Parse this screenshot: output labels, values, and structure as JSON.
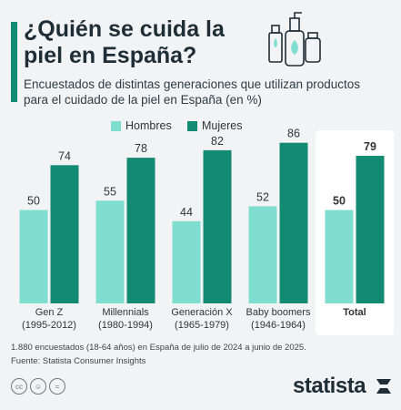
{
  "title": "¿Quién se cuida la piel en España?",
  "subtitle": "Encuestados de distintas generaciones que utilizan productos para el cuidado de la piel en España (en %)",
  "footnote_1": "1.880 encuestados (18-64 años) en España de julio de 2024 a junio de 2025.",
  "footnote_2": "Fuente: Statista Consumer Insights",
  "brand": "statista",
  "license_icons": [
    "cc-icon",
    "by-icon",
    "nd-icon"
  ],
  "colors": {
    "hombres": "#7fded0",
    "mujeres": "#138a72",
    "accent": "#138a72"
  },
  "chart_data": {
    "type": "bar",
    "categories": [
      {
        "name": "Gen Z",
        "sub": "(1995-2012)"
      },
      {
        "name": "Millennials",
        "sub": "(1980-1994)"
      },
      {
        "name": "Generación X",
        "sub": "(1965-1979)"
      },
      {
        "name": "Baby boomers",
        "sub": "(1946-1964)"
      },
      {
        "name": "Total",
        "sub": ""
      }
    ],
    "series": [
      {
        "name": "Hombres",
        "values": [
          50,
          55,
          44,
          52,
          50
        ]
      },
      {
        "name": "Mujeres",
        "values": [
          74,
          78,
          82,
          86,
          79
        ]
      }
    ],
    "ylim": [
      0,
      100
    ],
    "highlight_category": "Total",
    "grid": false,
    "legend": "top-center"
  }
}
